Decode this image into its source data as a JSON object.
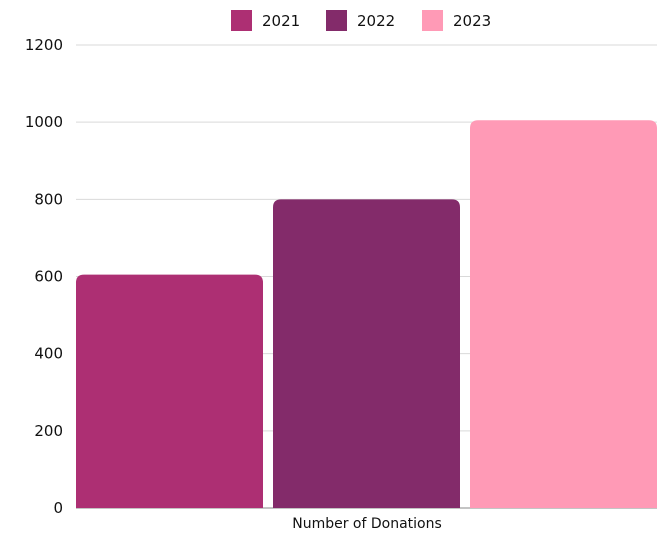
{
  "chart_data": {
    "type": "bar",
    "categories": [
      "Number of Donations"
    ],
    "series": [
      {
        "name": "2021",
        "values": [
          605
        ],
        "color": "#ad2f73"
      },
      {
        "name": "2022",
        "values": [
          800
        ],
        "color": "#832b6a"
      },
      {
        "name": "2023",
        "values": [
          1005
        ],
        "color": "#ff9ab6"
      }
    ],
    "ylim": [
      0,
      1200
    ],
    "yticks": [
      "0",
      "200",
      "400",
      "600",
      "800",
      "1000",
      "1200"
    ],
    "grid": true,
    "legend_position": "top-center"
  }
}
